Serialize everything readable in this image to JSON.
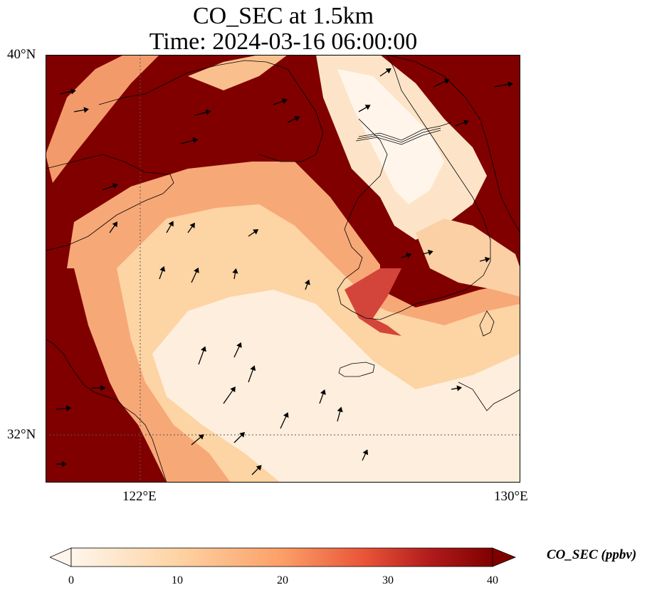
{
  "title": {
    "line1": "CO_SEC at 1.5km",
    "line2": "Time: 2024-03-16 06:00:00"
  },
  "map": {
    "variable": "CO_SEC",
    "level": "1.5km",
    "lat_labels": [
      "40°N",
      "32°N"
    ],
    "lon_labels": [
      "122°E",
      "130°E"
    ],
    "gridlines": "dotted",
    "colors": {
      "saturated": "#800000",
      "scale": [
        "#fff5eb",
        "#fdd4a4",
        "#fc9f67",
        "#e85337",
        "#b11c1c",
        "#800000"
      ]
    }
  },
  "colorbar": {
    "label": "CO_SEC (ppbv)",
    "min": 0,
    "max": 40,
    "ticks": [
      "0",
      "10",
      "20",
      "30",
      "40"
    ],
    "extend": "both"
  }
}
